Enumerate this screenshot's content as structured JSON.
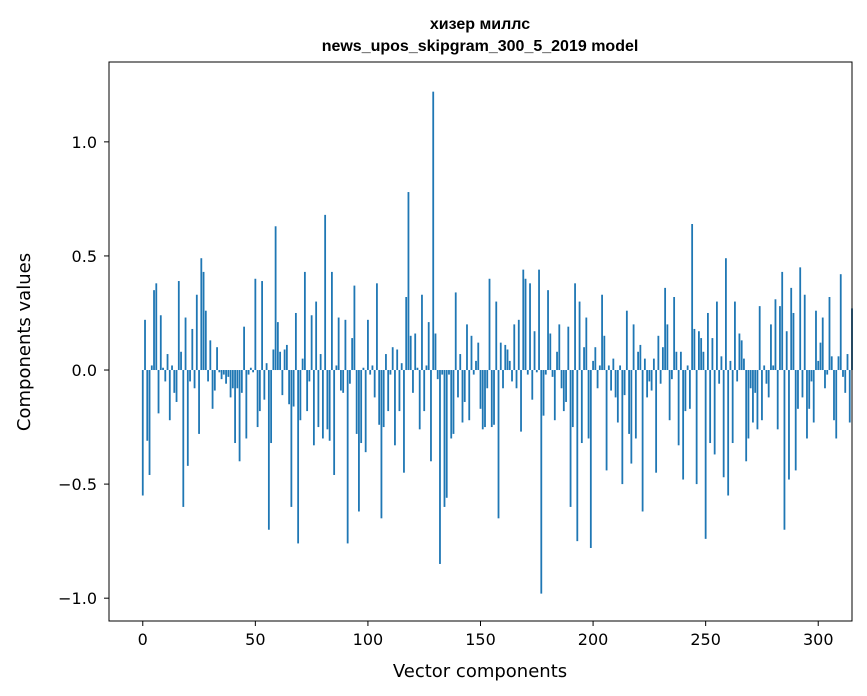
{
  "chart_data": {
    "type": "bar",
    "title": "хизер миллс",
    "subtitle": "news_upos_skipgram_300_5_2019 model",
    "xlabel": "Vector components",
    "ylabel": "Components values",
    "xlim": [
      -15,
      315
    ],
    "ylim": [
      -1.1,
      1.35
    ],
    "xticks": [
      0,
      50,
      100,
      150,
      200,
      250,
      300
    ],
    "xtick_labels": [
      "0",
      "50",
      "100",
      "150",
      "200",
      "250",
      "300"
    ],
    "yticks": [
      -1.0,
      -0.5,
      0.0,
      0.5,
      1.0
    ],
    "ytick_labels": [
      "−1.0",
      "−0.5",
      "0.0",
      "0.5",
      "1.0"
    ],
    "bar_color": "#1f77b4",
    "values": [
      -0.55,
      0.22,
      -0.31,
      -0.46,
      0.02,
      0.35,
      0.38,
      -0.19,
      0.24,
      0.01,
      -0.05,
      0.07,
      -0.22,
      0.02,
      -0.1,
      -0.14,
      0.39,
      0.08,
      -0.6,
      0.23,
      -0.42,
      -0.05,
      0.18,
      -0.08,
      0.33,
      -0.28,
      0.49,
      0.43,
      0.26,
      -0.05,
      0.13,
      -0.17,
      -0.09,
      0.1,
      -0.01,
      -0.04,
      -0.02,
      -0.06,
      -0.03,
      -0.12,
      -0.08,
      -0.32,
      -0.08,
      -0.4,
      -0.1,
      0.19,
      -0.3,
      -0.02,
      0.01,
      -0.01,
      0.4,
      -0.25,
      -0.18,
      0.39,
      -0.13,
      0.03,
      -0.7,
      -0.32,
      0.09,
      0.63,
      0.21,
      0.08,
      -0.11,
      0.09,
      0.11,
      -0.15,
      -0.6,
      -0.16,
      0.25,
      -0.76,
      -0.22,
      0.05,
      0.43,
      -0.18,
      -0.05,
      0.24,
      -0.33,
      0.3,
      -0.25,
      0.07,
      -0.3,
      0.68,
      -0.26,
      -0.31,
      0.43,
      -0.46,
      0.02,
      0.23,
      -0.09,
      -0.1,
      0.22,
      -0.76,
      -0.06,
      0.14,
      0.37,
      -0.28,
      -0.62,
      -0.32,
      0.01,
      -0.36,
      0.22,
      -0.02,
      0.02,
      -0.12,
      0.38,
      -0.24,
      -0.65,
      -0.25,
      0.07,
      -0.18,
      -0.02,
      0.1,
      -0.33,
      0.09,
      -0.18,
      0.03,
      -0.45,
      0.32,
      0.78,
      0.15,
      -0.1,
      0.16,
      0.01,
      -0.26,
      0.33,
      -0.18,
      0.02,
      0.21,
      -0.4,
      1.22,
      0.16,
      -0.04,
      -0.85,
      -0.02,
      -0.6,
      -0.56,
      -0.02,
      -0.3,
      -0.28,
      0.34,
      -0.12,
      0.07,
      -0.23,
      -0.14,
      0.2,
      -0.22,
      0.15,
      -0.02,
      0.04,
      0.12,
      -0.17,
      -0.26,
      -0.25,
      -0.08,
      0.4,
      -0.25,
      -0.24,
      0.3,
      -0.65,
      0.12,
      -0.08,
      0.11,
      0.09,
      0.04,
      -0.05,
      0.2,
      -0.08,
      0.22,
      -0.27,
      0.44,
      0.4,
      -0.02,
      0.38,
      -0.13,
      0.17,
      -0.01,
      0.44,
      -0.98,
      -0.2,
      -0.02,
      0.35,
      0.16,
      -0.03,
      -0.22,
      0.08,
      0.2,
      -0.08,
      -0.18,
      -0.14,
      0.19,
      -0.6,
      -0.25,
      0.38,
      -0.75,
      0.3,
      -0.32,
      0.1,
      0.23,
      -0.3,
      -0.78,
      0.04,
      0.1,
      -0.08,
      0.02,
      0.33,
      0.15,
      -0.44,
      0.02,
      -0.09,
      0.05,
      -0.12,
      -0.23,
      0.02,
      -0.5,
      -0.11,
      0.26,
      -0.28,
      -0.41,
      0.2,
      -0.3,
      0.08,
      0.11,
      -0.62,
      0.05,
      -0.12,
      -0.05,
      -0.09,
      0.05,
      -0.45,
      0.15,
      -0.06,
      0.1,
      0.36,
      0.2,
      -0.22,
      -0.04,
      0.32,
      0.08,
      -0.33,
      0.08,
      -0.48,
      -0.18,
      0.02,
      -0.17,
      0.64,
      0.18,
      -0.5,
      0.17,
      0.14,
      0.08,
      -0.74,
      0.25,
      -0.32,
      0.14,
      -0.37,
      0.3,
      -0.06,
      0.06,
      -0.47,
      0.49,
      -0.55,
      0.04,
      -0.32,
      0.3,
      -0.05,
      0.16,
      0.13,
      0.05,
      -0.4,
      -0.3,
      -0.08,
      -0.23,
      -0.1,
      -0.26,
      0.28,
      -0.22,
      0.02,
      -0.06,
      -0.12,
      0.2,
      0.02,
      0.31,
      -0.26,
      0.28,
      0.43,
      -0.7,
      0.17,
      -0.48,
      0.36,
      0.25,
      -0.44,
      -0.17,
      0.45,
      -0.12,
      0.33,
      -0.3,
      -0.17,
      -0.05,
      -0.23,
      0.26,
      0.04,
      0.12,
      0.23,
      -0.08,
      -0.02,
      0.32,
      0.06,
      -0.22,
      -0.3,
      0.06,
      0.42,
      -0.03,
      -0.1,
      0.07,
      -0.23,
      0.27
    ]
  }
}
